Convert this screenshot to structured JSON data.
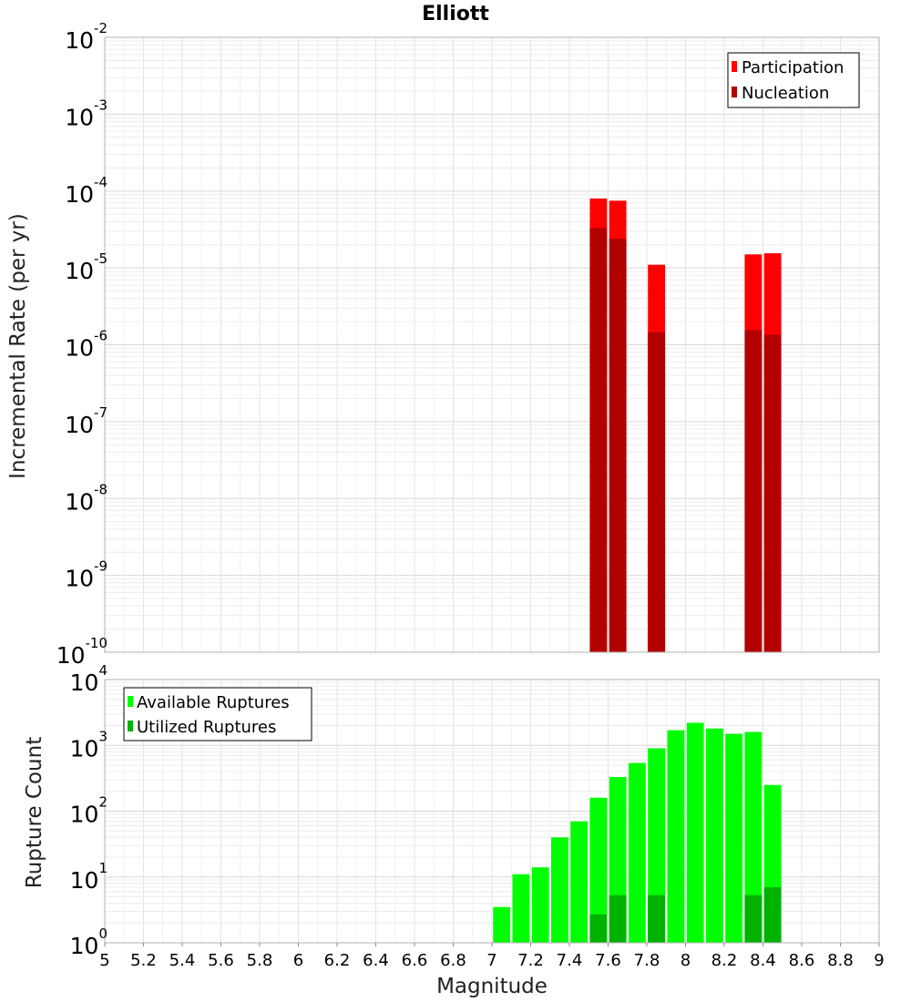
{
  "chart_data": [
    {
      "type": "bar",
      "title": "Elliott",
      "ylabel": "Incremental Rate (per yr)",
      "xlabel": "",
      "yscale": "log",
      "ylim_exponents": [
        -10,
        -2
      ],
      "xlim": [
        5,
        9
      ],
      "bin_width": 0.1,
      "legend_position": "top-right",
      "series": [
        {
          "name": "Participation",
          "color": "#ff0000",
          "x": [
            7.55,
            7.65,
            7.85,
            8.35,
            8.45
          ],
          "values": [
            8e-05,
            7.5e-05,
            1.1e-05,
            1.5e-05,
            1.55e-05
          ]
        },
        {
          "name": "Nucleation",
          "color": "#b20000",
          "x": [
            7.55,
            7.65,
            7.85,
            8.35,
            8.45
          ],
          "values": [
            3.3e-05,
            2.4e-05,
            1.45e-06,
            1.55e-06,
            1.35e-06
          ]
        }
      ]
    },
    {
      "type": "bar",
      "title": "",
      "ylabel": "Rupture Count",
      "xlabel": "Magnitude",
      "yscale": "log",
      "ylim_exponents": [
        0,
        4
      ],
      "xlim": [
        5,
        9
      ],
      "bin_width": 0.1,
      "legend_position": "top-left",
      "x_ticks": [
        "5",
        "5.2",
        "5.4",
        "5.6",
        "5.8",
        "6",
        "6.2",
        "6.4",
        "6.6",
        "6.8",
        "7",
        "7.2",
        "7.4",
        "7.6",
        "7.8",
        "8",
        "8.2",
        "8.4",
        "8.6",
        "8.8",
        "9"
      ],
      "series": [
        {
          "name": "Available Ruptures",
          "color": "#00ff00",
          "x": [
            7.05,
            7.15,
            7.25,
            7.35,
            7.45,
            7.55,
            7.65,
            7.75,
            7.85,
            7.95,
            8.05,
            8.15,
            8.25,
            8.35,
            8.45
          ],
          "values": [
            3.5,
            11,
            14,
            40,
            70,
            160,
            330,
            540,
            900,
            1700,
            2200,
            1800,
            1500,
            1600,
            250
          ]
        },
        {
          "name": "Utilized Ruptures",
          "color": "#00b200",
          "x": [
            7.55,
            7.65,
            7.85,
            8.25,
            8.35,
            8.45
          ],
          "values": [
            2.7,
            5.3,
            5.3,
            1.0,
            5.3,
            7.0
          ]
        }
      ]
    }
  ]
}
